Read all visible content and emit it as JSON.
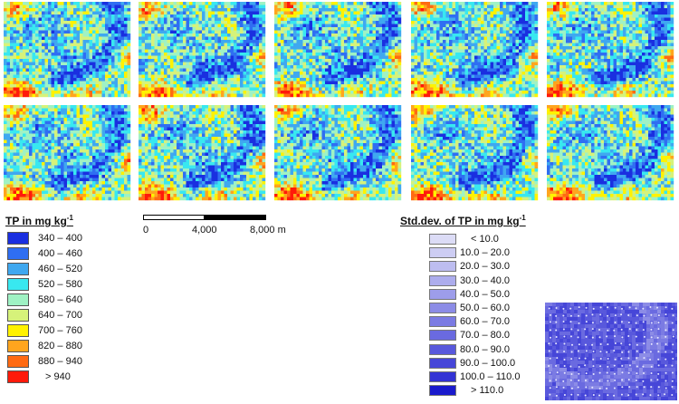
{
  "maps": {
    "rows": 2,
    "cols": 5,
    "variable": "TP"
  },
  "tp_legend": {
    "title_prefix": "TP in mg kg",
    "title_sup": "-1",
    "classes": [
      {
        "label": "340 – 400",
        "color": "#1a2fe0"
      },
      {
        "label": "400 – 460",
        "color": "#2f6ef2"
      },
      {
        "label": "460 – 520",
        "color": "#3fa8f0"
      },
      {
        "label": "520 – 580",
        "color": "#38e8f0"
      },
      {
        "label": "580 – 640",
        "color": "#9ff2c4"
      },
      {
        "label": "640 – 700",
        "color": "#d6f27a"
      },
      {
        "label": "700 – 760",
        "color": "#fff200"
      },
      {
        "label": "820 – 880",
        "color": "#ffa51e"
      },
      {
        "label": "880 – 940",
        "color": "#ff6a12"
      },
      {
        "label": "> 940",
        "color": "#ff1a0a"
      }
    ]
  },
  "scale_bar": {
    "labels": [
      "0",
      "4,000",
      "8,000 m"
    ]
  },
  "sd_legend": {
    "title_prefix": "Std.dev. of TP in mg kg",
    "title_sup": "-1",
    "classes": [
      {
        "label": "< 10.0",
        "color": "#dcdcf6"
      },
      {
        "label": "10.0 – 20.0",
        "color": "#cdcdf3"
      },
      {
        "label": "20.0 – 30.0",
        "color": "#bdbdf0"
      },
      {
        "label": "30.0 – 40.0",
        "color": "#adaded"
      },
      {
        "label": "40.0 – 50.0",
        "color": "#9d9dea"
      },
      {
        "label": "50.0 – 60.0",
        "color": "#8c8ce6"
      },
      {
        "label": "60.0 – 70.0",
        "color": "#7b7be3"
      },
      {
        "label": "70.0 – 80.0",
        "color": "#6a6ae0"
      },
      {
        "label": "80.0 – 90.0",
        "color": "#5858dc"
      },
      {
        "label": "90.0 – 100.0",
        "color": "#4646d8"
      },
      {
        "label": "100.0 – 110.0",
        "color": "#3333d4"
      },
      {
        "label": "> 110.0",
        "color": "#1a1acc"
      }
    ]
  }
}
